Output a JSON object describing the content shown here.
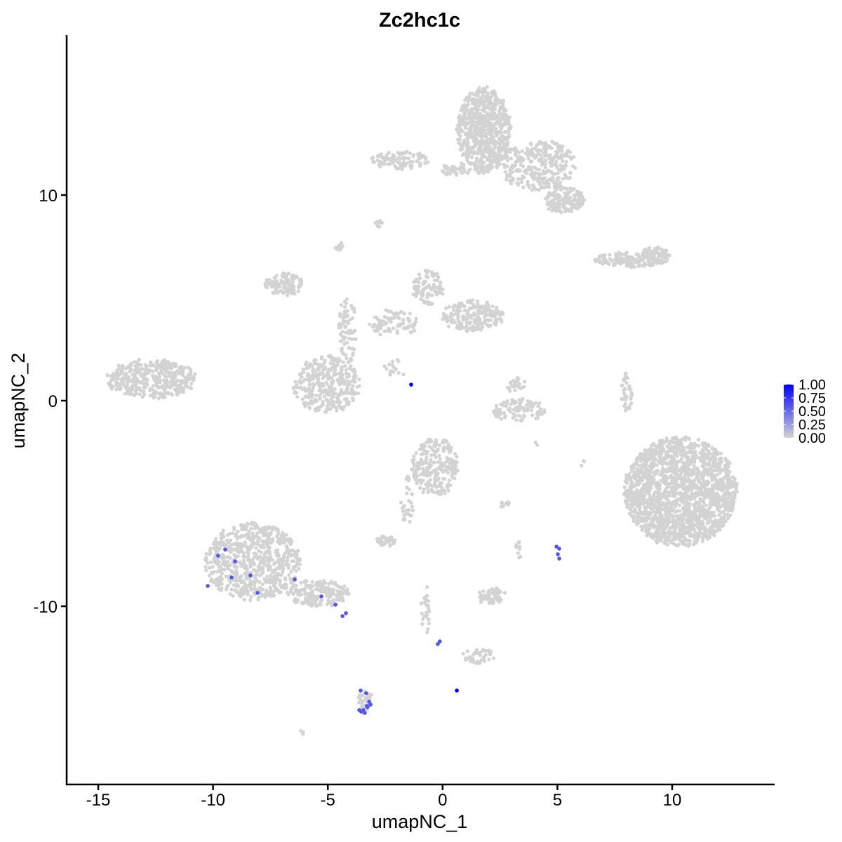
{
  "chart_data": {
    "type": "scatter",
    "title": "Zc2hc1c",
    "xlabel": "umapNC_1",
    "ylabel": "umapNC_2",
    "xlim": [
      -16.5,
      14.3
    ],
    "ylim": [
      -18.5,
      17.8
    ],
    "x_ticks": [
      -15,
      -10,
      -5,
      0,
      5,
      10
    ],
    "x_tick_labels": [
      "-15",
      "-10",
      "-5",
      "0",
      "5",
      "10"
    ],
    "y_ticks": [
      10,
      0,
      -10
    ],
    "y_tick_labels": [
      "10",
      "0",
      "-10"
    ],
    "grid": false,
    "legend": {
      "placement": "right",
      "type": "colorbar",
      "ticks": [
        1.0,
        0.75,
        0.5,
        0.25,
        0.0
      ],
      "tick_labels": [
        "1.00",
        "0.75",
        "0.50",
        "0.25",
        "0.00"
      ],
      "low_color": "#d3d3d3",
      "high_color": "#0000ff"
    },
    "background_color_value": 0,
    "expressing_cells": [
      {
        "x": -9.47,
        "y": -7.24,
        "value": 0.6
      },
      {
        "x": -9.78,
        "y": -7.54,
        "value": 0.6
      },
      {
        "x": -9.04,
        "y": -7.82,
        "value": 0.6
      },
      {
        "x": -9.19,
        "y": -8.6,
        "value": 0.6
      },
      {
        "x": -8.37,
        "y": -8.5,
        "value": 0.6
      },
      {
        "x": -10.23,
        "y": -9.01,
        "value": 0.6
      },
      {
        "x": -8.06,
        "y": -9.35,
        "value": 0.6
      },
      {
        "x": -6.44,
        "y": -8.7,
        "value": 0.6
      },
      {
        "x": -5.28,
        "y": -9.52,
        "value": 0.6
      },
      {
        "x": -4.67,
        "y": -9.93,
        "value": 0.6
      },
      {
        "x": -4.36,
        "y": -10.48,
        "value": 0.6
      },
      {
        "x": -4.21,
        "y": -10.34,
        "value": 0.6
      },
      {
        "x": -3.57,
        "y": -14.1,
        "value": 0.6
      },
      {
        "x": -3.33,
        "y": -14.23,
        "value": 0.6
      },
      {
        "x": -3.63,
        "y": -15.05,
        "value": 0.6
      },
      {
        "x": -3.45,
        "y": -15.05,
        "value": 0.6
      },
      {
        "x": -3.27,
        "y": -14.91,
        "value": 0.6
      },
      {
        "x": -3.2,
        "y": -14.64,
        "value": 0.6
      },
      {
        "x": -3.39,
        "y": -15.19,
        "value": 0.6
      },
      {
        "x": -3.14,
        "y": -14.78,
        "value": 0.6
      },
      {
        "x": -3.55,
        "y": -15.12,
        "value": 0.6
      },
      {
        "x": -3.3,
        "y": -14.85,
        "value": 0.6
      },
      {
        "x": 4.96,
        "y": -7.1,
        "value": 0.6
      },
      {
        "x": 5.08,
        "y": -7.2,
        "value": 0.6
      },
      {
        "x": 5.02,
        "y": -7.47,
        "value": 0.6
      },
      {
        "x": 5.08,
        "y": -7.68,
        "value": 0.6
      },
      {
        "x": -0.21,
        "y": -11.84,
        "value": 0.6
      },
      {
        "x": -0.12,
        "y": -11.71,
        "value": 0.6
      },
      {
        "x": -1.37,
        "y": 0.78,
        "value": 1.0
      },
      {
        "x": 0.62,
        "y": -14.1,
        "value": 1.0
      }
    ]
  }
}
